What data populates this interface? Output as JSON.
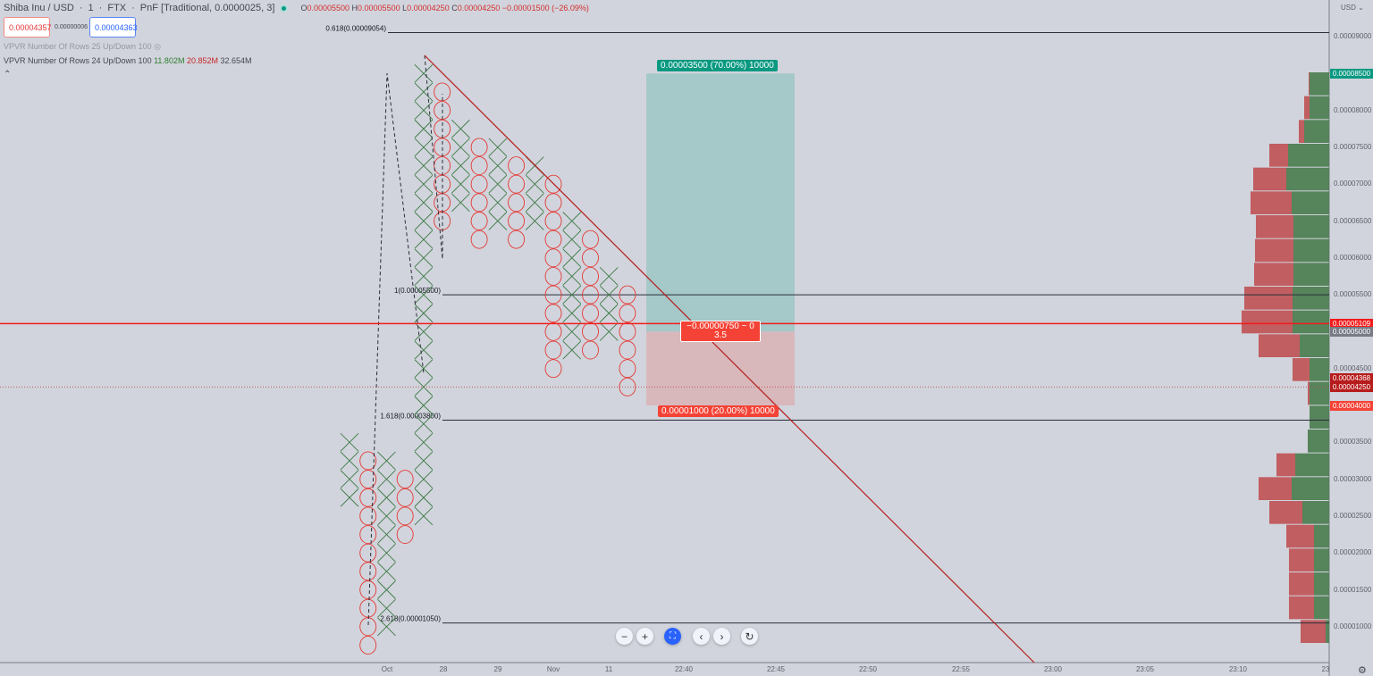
{
  "header": {
    "symbol": "Shiba Inu / USD",
    "interval": "1",
    "exchange": "FTX",
    "chart_type": "PnF [Traditional, 0.0000025, 3]",
    "ohlc": {
      "o": "0.00005500",
      "h": "0.00005500",
      "l": "0.00004250",
      "c": "0.00004250",
      "change": "−0.00001500 (−26.09%)"
    },
    "bid": "0.00004357",
    "spread": "0.00000006",
    "ask": "0.00004363"
  },
  "indicators": [
    {
      "label": "VPVR Number Of Rows 25 Up/Down 100",
      "hidden": true
    },
    {
      "label": "VPVR Number Of Rows 24 Up/Down 100",
      "up": "11.802M",
      "down": "20.852M",
      "total": "32.654M"
    }
  ],
  "colors": {
    "x": "#3d7a45",
    "o": "#e53935",
    "trend": "#b71c1c",
    "up": "#4f7f53",
    "down": "#c0575a",
    "profit": "#a5c8c9",
    "loss": "#d9b8bc"
  },
  "fib": [
    {
      "label": "0.618(0.00009054)",
      "price": 9.054e-05
    },
    {
      "label": "1(0.00005500)",
      "price": 5.5e-05
    },
    {
      "label": "1.618(0.00003800)",
      "price": 3.8e-05
    },
    {
      "label": "2.618(0.00001050)",
      "price": 1.05e-05
    }
  ],
  "chart_data": {
    "type": "point-and-figure",
    "box_size": 2.5e-06,
    "reversal": 3,
    "columns": [
      {
        "t": "X",
        "from": 2.75e-05,
        "to": 3.5e-05
      },
      {
        "t": "O",
        "from": 3.25e-05,
        "to": 7.5e-06
      },
      {
        "t": "X",
        "from": 1e-05,
        "to": 3.25e-05
      },
      {
        "t": "O",
        "from": 3e-05,
        "to": 2.25e-05
      },
      {
        "t": "X",
        "from": 2.5e-05,
        "to": 8.5e-05
      },
      {
        "t": "O",
        "from": 8.25e-05,
        "to": 6.5e-05
      },
      {
        "t": "X",
        "from": 6.75e-05,
        "to": 7.75e-05
      },
      {
        "t": "O",
        "from": 7.5e-05,
        "to": 6.25e-05
      },
      {
        "t": "X",
        "from": 6.5e-05,
        "to": 7.5e-05
      },
      {
        "t": "O",
        "from": 7.25e-05,
        "to": 6.25e-05
      },
      {
        "t": "X",
        "from": 6.5e-05,
        "to": 7.25e-05
      },
      {
        "t": "O",
        "from": 7e-05,
        "to": 4.5e-05
      },
      {
        "t": "X",
        "from": 4.75e-05,
        "to": 6.5e-05
      },
      {
        "t": "O",
        "from": 6.25e-05,
        "to": 4.75e-05
      },
      {
        "t": "X",
        "from": 5e-05,
        "to": 5.75e-05
      },
      {
        "t": "O",
        "from": 5.5e-05,
        "to": 4.25e-05
      }
    ],
    "x_ticks": [
      "Oct",
      "28",
      "29",
      "Nov",
      "11",
      "22:40",
      "22:45",
      "22:50",
      "22:55",
      "23:00",
      "23:05",
      "23:10",
      "23"
    ],
    "y_ticks": [
      "0.00009000",
      "0.00008000",
      "0.00007500",
      "0.00007000",
      "0.00006500",
      "0.00006000",
      "0.00005500",
      "0.00004500",
      "0.00003500",
      "0.00003000",
      "0.00002500",
      "0.00002000",
      "0.00001500",
      "0.00001000"
    ],
    "y_tick_values": [
      9e-05,
      8e-05,
      7.5e-05,
      7e-05,
      6.5e-05,
      6e-05,
      5.5e-05,
      4.5e-05,
      3.5e-05,
      3e-05,
      2.5e-05,
      2e-05,
      1.5e-05,
      1e-05
    ],
    "volume_profile": [
      [
        22,
        1
      ],
      [
        22,
        6
      ],
      [
        28,
        6
      ],
      [
        46,
        21
      ],
      [
        48,
        37
      ],
      [
        42,
        46
      ],
      [
        40,
        42
      ],
      [
        40,
        43
      ],
      [
        40,
        44
      ],
      [
        41,
        54
      ],
      [
        41,
        57
      ],
      [
        33,
        46
      ],
      [
        22,
        19
      ],
      [
        22,
        2
      ],
      [
        22,
        0
      ],
      [
        24,
        0
      ],
      [
        38,
        21
      ],
      [
        42,
        37
      ],
      [
        30,
        37
      ],
      [
        17,
        31
      ],
      [
        17,
        28
      ],
      [
        17,
        28
      ],
      [
        17,
        28
      ],
      [
        4,
        28
      ]
    ],
    "volume_profile_columns": [
      "up",
      "down"
    ]
  },
  "position": {
    "target": "0.00003500 (70.00%) 10000",
    "stop": "0.00001000 (20.00%) 10000",
    "pnl": "−0.00000750 ~ 0",
    "ratio": "3.5",
    "entry": 5e-05,
    "tp": 8.5e-05,
    "sl": 4e-05
  },
  "price_axis": {
    "currency": "USD",
    "badges": [
      {
        "v": "0.00008500",
        "p": 8.5e-05,
        "c": "#089981"
      },
      {
        "v": "0.00005109",
        "p": 5.109e-05,
        "c": "#f21c1c"
      },
      {
        "v": "0.00005000",
        "p": 5e-05,
        "c": "#787b86"
      },
      {
        "v": "0.00004368",
        "p": 4.368e-05,
        "c": "#b71c1c"
      },
      {
        "v": "0.00004250",
        "p": 4.25e-05,
        "c": "#b71c1c"
      },
      {
        "v": "0.00004000",
        "p": 4e-05,
        "c": "#f44336"
      }
    ]
  },
  "nav": {
    "zoom_out": "−",
    "zoom_in": "+",
    "reset_scale": "⛶",
    "scroll_left": "‹",
    "scroll_right": "›",
    "reset": "↻"
  },
  "settings_icon": "⚙"
}
